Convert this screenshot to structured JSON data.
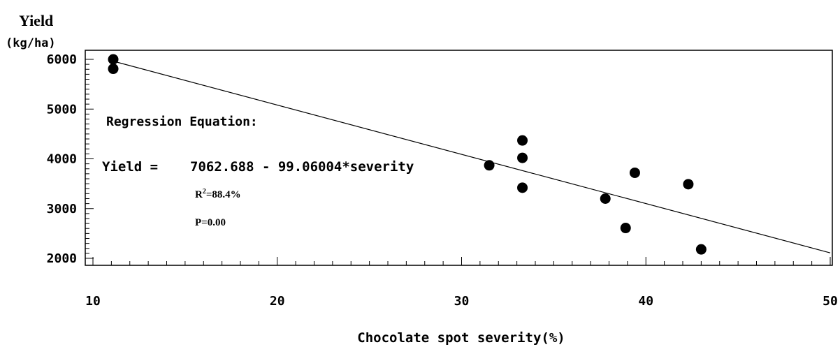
{
  "chart_data": {
    "type": "scatter",
    "title": "",
    "ylabel_line1": "Yield",
    "ylabel_line2": "(kg/ha)",
    "xlabel": "Chocolate spot severity(%)",
    "xlim": [
      10,
      50
    ],
    "ylim": [
      2000,
      6000
    ],
    "x_ticks": [
      10,
      20,
      30,
      40,
      50
    ],
    "y_ticks": [
      2000,
      3000,
      4000,
      5000,
      6000
    ],
    "x_tick_labels": [
      "10",
      "20",
      "30",
      "40",
      "50"
    ],
    "y_tick_labels": [
      "2000",
      "3000",
      "4000",
      "5000",
      "6000"
    ],
    "grid": false,
    "points": [
      {
        "x": 11.1,
        "y": 6000
      },
      {
        "x": 11.1,
        "y": 5810
      },
      {
        "x": 31.5,
        "y": 3870
      },
      {
        "x": 33.3,
        "y": 4370
      },
      {
        "x": 33.3,
        "y": 4020
      },
      {
        "x": 33.3,
        "y": 3420
      },
      {
        "x": 37.8,
        "y": 3200
      },
      {
        "x": 38.9,
        "y": 2610
      },
      {
        "x": 39.4,
        "y": 3720
      },
      {
        "x": 42.3,
        "y": 3490
      },
      {
        "x": 43.0,
        "y": 2180
      }
    ],
    "regression": {
      "intercept": 7062.688,
      "slope": -99.06004,
      "x_range": [
        11.1,
        50
      ]
    },
    "annotations": {
      "heading": "Regression Equation:",
      "equation_lhs": "Yield =",
      "equation_rhs": "7062.688 - 99.06004*severity",
      "r2_prefix": "R",
      "r2_sup": "2",
      "r2_value": "=88.4%",
      "p_value": "P=0.00"
    },
    "colors": {
      "points": "#000000",
      "line": "#000000",
      "axis": "#000000"
    }
  }
}
